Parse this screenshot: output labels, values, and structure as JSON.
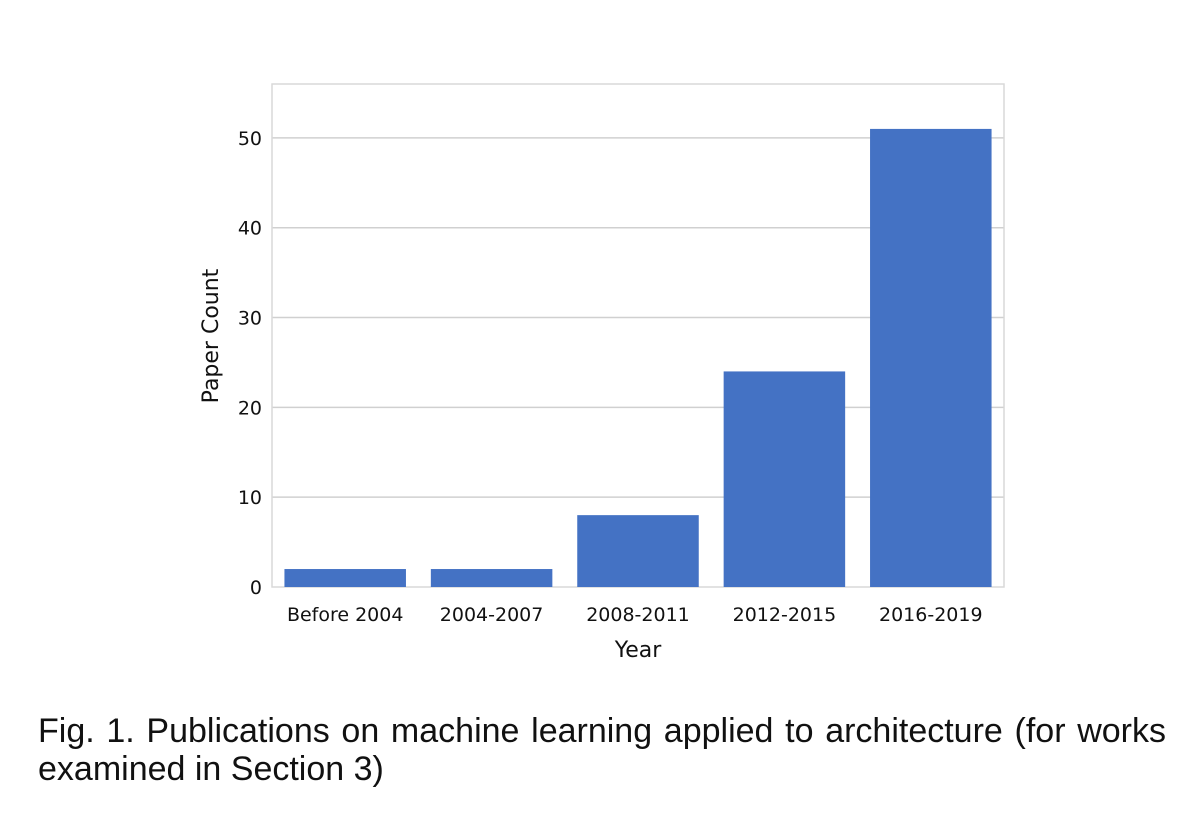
{
  "chart_data": {
    "type": "bar",
    "categories": [
      "Before 2004",
      "2004-2007",
      "2008-2011",
      "2012-2015",
      "2016-2019"
    ],
    "values": [
      2,
      2,
      8,
      24,
      51
    ],
    "xlabel": "Year",
    "ylabel": "Paper Count",
    "ylim": [
      0,
      56
    ],
    "yticks": [
      0,
      10,
      20,
      30,
      40,
      50
    ],
    "grid": "horizontal",
    "bar_color": "#4472C4"
  },
  "caption": "Fig. 1. Publications on machine learning applied to architecture (for works examined in Section 3)"
}
